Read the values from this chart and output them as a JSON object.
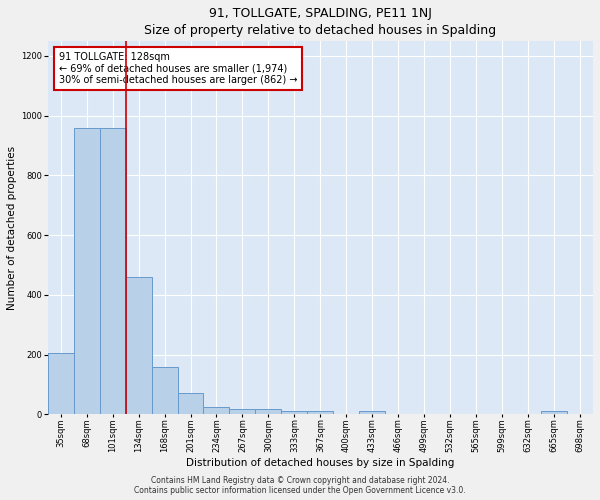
{
  "title": "91, TOLLGATE, SPALDING, PE11 1NJ",
  "subtitle": "Size of property relative to detached houses in Spalding",
  "xlabel": "Distribution of detached houses by size in Spalding",
  "ylabel": "Number of detached properties",
  "categories": [
    "35sqm",
    "68sqm",
    "101sqm",
    "134sqm",
    "168sqm",
    "201sqm",
    "234sqm",
    "267sqm",
    "300sqm",
    "333sqm",
    "367sqm",
    "400sqm",
    "433sqm",
    "466sqm",
    "499sqm",
    "532sqm",
    "565sqm",
    "599sqm",
    "632sqm",
    "665sqm",
    "698sqm"
  ],
  "values": [
    205,
    960,
    960,
    460,
    160,
    70,
    25,
    18,
    18,
    10,
    10,
    0,
    10,
    0,
    0,
    0,
    0,
    0,
    0,
    10,
    0
  ],
  "bar_color": "#b8d0e8",
  "bar_edge_color": "#6699cc",
  "vline_x_index": 2.5,
  "vline_color": "#cc0000",
  "annotation_text": "91 TOLLGATE: 128sqm\n← 69% of detached houses are smaller (1,974)\n30% of semi-detached houses are larger (862) →",
  "annotation_box_color": "#ffffff",
  "annotation_box_edge": "#cc0000",
  "ylim": [
    0,
    1250
  ],
  "yticks": [
    0,
    200,
    400,
    600,
    800,
    1000,
    1200
  ],
  "background_color": "#dce8f5",
  "grid_color": "#ffffff",
  "footer": "Contains HM Land Registry data © Crown copyright and database right 2024.\nContains public sector information licensed under the Open Government Licence v3.0.",
  "title_fontsize": 9,
  "ylabel_fontsize": 7.5,
  "xlabel_fontsize": 7.5,
  "tick_fontsize": 6,
  "annotation_fontsize": 7,
  "footer_fontsize": 5.5
}
